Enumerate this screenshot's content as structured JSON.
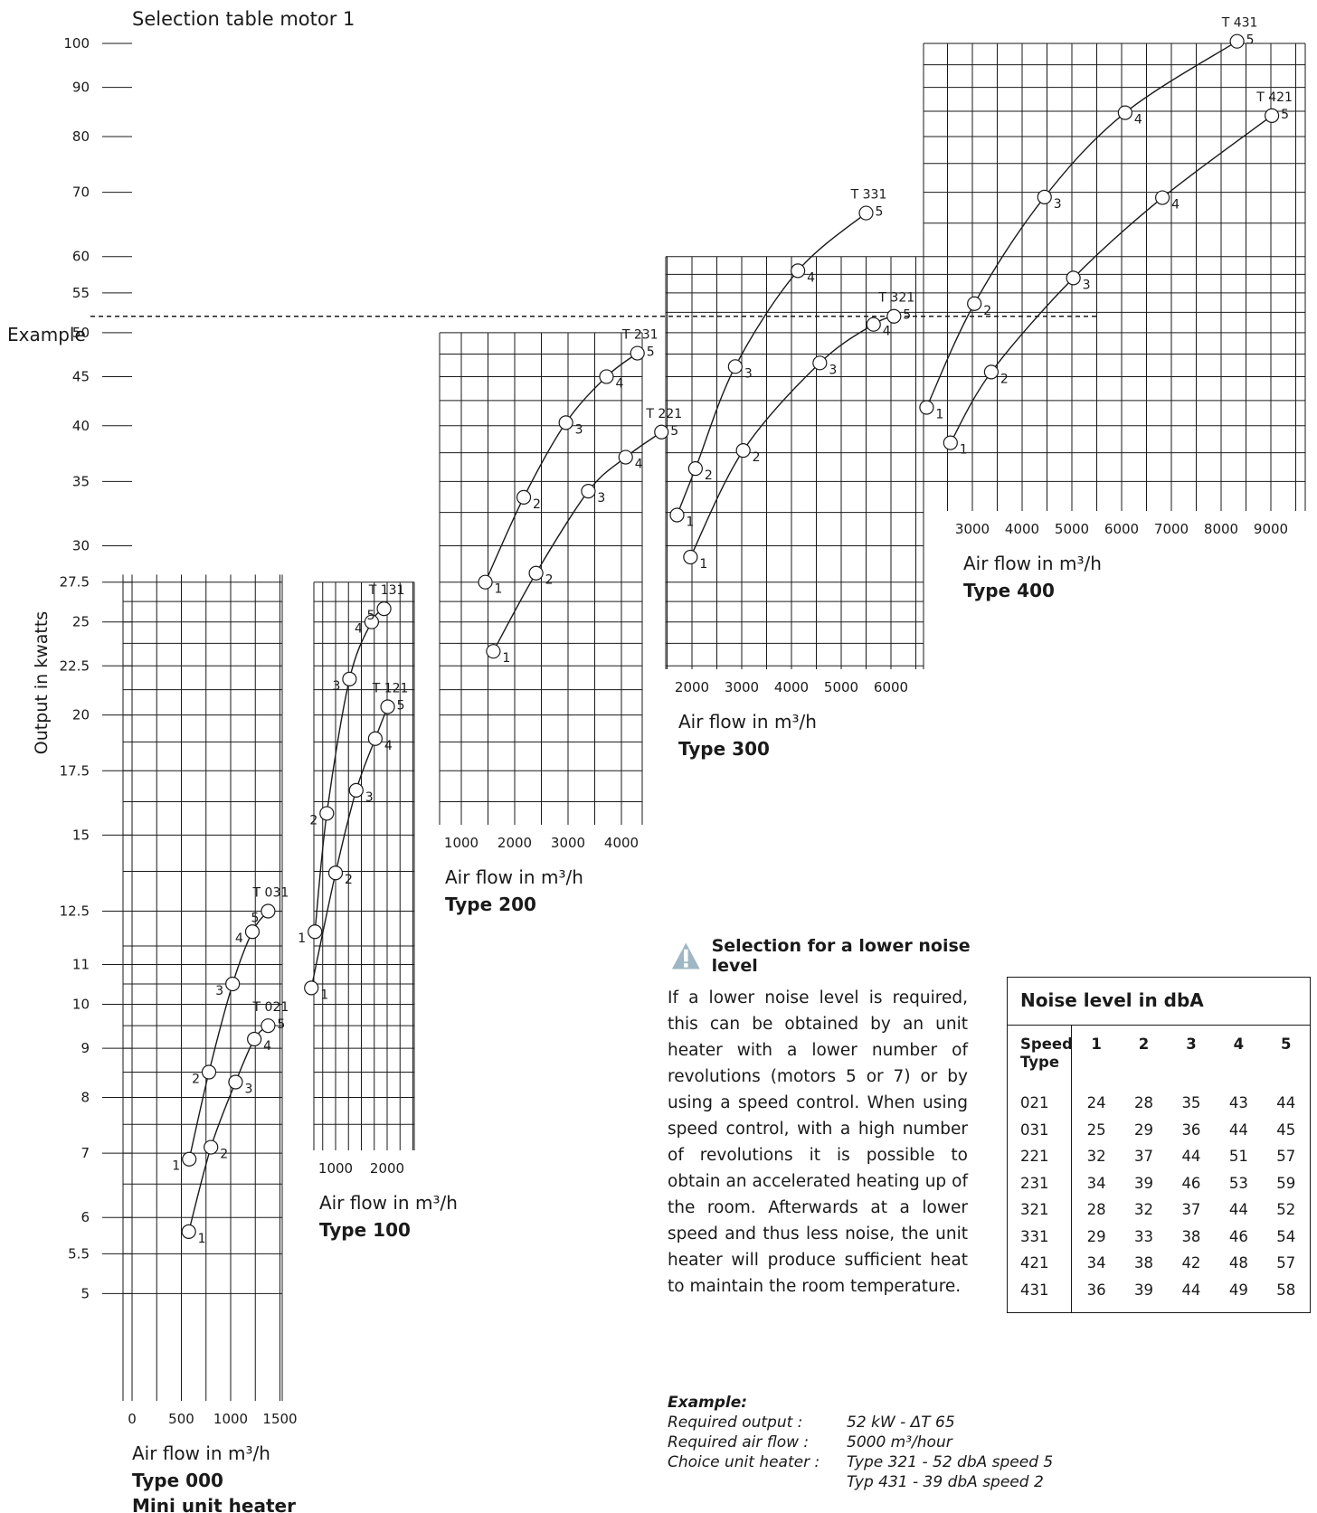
{
  "page": {
    "title": "Selection table motor 1",
    "example_label": "Example"
  },
  "chart_data": {
    "type": "line",
    "title": "Selection table motor 1",
    "ylabel": "Output in kwatts",
    "y_scale": "log",
    "ylim": [
      5,
      100
    ],
    "y_ticks": [
      5,
      5.5,
      6,
      7,
      8,
      9,
      10,
      11,
      12.5,
      15,
      17.5,
      20,
      22.5,
      25,
      27.5,
      30,
      35,
      40,
      45,
      50,
      55,
      60,
      70,
      80,
      90,
      100
    ],
    "y_tick_labels": [
      "5",
      "5.5",
      "6",
      "7",
      "8",
      "9",
      "10",
      "11",
      "12.5",
      "15",
      "17.5",
      "20",
      "22.5",
      "25",
      "27.5",
      "30",
      "35",
      "40",
      "45",
      "50",
      "55",
      "60",
      "70",
      "80",
      "90",
      "100"
    ],
    "example_line": {
      "label": "Example",
      "y": 52
    },
    "panels": [
      {
        "name": "Type 000",
        "subtitle": "Mini unit heater",
        "xlabel": "Air flow in m³/h",
        "x_ticks": [
          0,
          500,
          1000,
          1500
        ],
        "x_tick_labels": [
          "0",
          "500",
          "1000",
          "1500"
        ],
        "series": [
          {
            "name": "T 021",
            "x": [
              575,
              800,
              1050,
              1240,
              1380
            ],
            "y": [
              5.8,
              7.1,
              8.3,
              9.2,
              9.5
            ],
            "speeds": [
              "1",
              "2",
              "3",
              "4",
              "5"
            ]
          },
          {
            "name": "T 031",
            "x": [
              580,
              780,
              1020,
              1220,
              1380
            ],
            "y": [
              6.9,
              8.5,
              10.5,
              11.9,
              12.5
            ],
            "speeds": [
              "1",
              "2",
              "3",
              "4",
              "5"
            ]
          }
        ]
      },
      {
        "name": "Type 100",
        "xlabel": "Air flow in m³/h",
        "x_ticks": [
          1000,
          2000
        ],
        "x_tick_labels": [
          "1000",
          "2000"
        ],
        "series": [
          {
            "name": "T 121",
            "x": [
              530,
              1000,
              1400,
              1770,
              2010
            ],
            "y": [
              10.4,
              13.7,
              16.7,
              18.9,
              20.4
            ],
            "speeds": [
              "1",
              "2",
              "3",
              "4",
              "5"
            ]
          },
          {
            "name": "T 131",
            "x": [
              600,
              830,
              1270,
              1700,
              1940
            ],
            "y": [
              11.9,
              15.8,
              21.8,
              25,
              25.8
            ],
            "speeds": [
              "1",
              "2",
              "3",
              "4",
              "5"
            ]
          }
        ]
      },
      {
        "name": "Type 200",
        "xlabel": "Air flow in m³/h",
        "x_ticks": [
          1000,
          2000,
          3000,
          4000
        ],
        "x_tick_labels": [
          "1000",
          "2000",
          "3000",
          "4000"
        ],
        "series": [
          {
            "name": "T 221",
            "x": [
              1600,
              2400,
              3380,
              4080,
              4750
            ],
            "y": [
              23.3,
              28.1,
              34.2,
              37.1,
              39.4
            ],
            "speeds": [
              "1",
              "2",
              "3",
              "4",
              "5"
            ]
          },
          {
            "name": "T 231",
            "x": [
              1450,
              2170,
              2960,
              3720,
              4300
            ],
            "y": [
              27.5,
              33.7,
              40.3,
              45,
              47.6
            ],
            "speeds": [
              "1",
              "2",
              "3",
              "4",
              "5"
            ]
          }
        ]
      },
      {
        "name": "Type 300",
        "xlabel": "Air flow in m³/h",
        "x_ticks": [
          2000,
          3000,
          4000,
          5000,
          6000
        ],
        "x_tick_labels": [
          "2000",
          "3000",
          "4000",
          "5000",
          "6000"
        ],
        "series": [
          {
            "name": "T 321",
            "x": [
              1970,
              3030,
              4570,
              5650,
              6060
            ],
            "y": [
              29.2,
              37.7,
              46.5,
              51,
              52
            ],
            "speeds": [
              "1",
              "2",
              "3",
              "4",
              "5"
            ]
          },
          {
            "name": "T 331",
            "x": [
              1700,
              2070,
              2870,
              4130,
              5500
            ],
            "y": [
              32.3,
              36.1,
              46.1,
              58,
              66.6
            ],
            "speeds": [
              "1",
              "2",
              "3",
              "4",
              "5"
            ]
          }
        ]
      },
      {
        "name": "Type 400",
        "xlabel": "Air flow in m³/h",
        "x_ticks": [
          3000,
          4000,
          5000,
          6000,
          7000,
          8000,
          9000
        ],
        "x_tick_labels": [
          "3000",
          "4000",
          "5000",
          "6000",
          "7000",
          "8000",
          "9000"
        ],
        "series": [
          {
            "name": "T 421",
            "x": [
              2560,
              3380,
              5030,
              6820,
              9020
            ],
            "y": [
              38.4,
              45.5,
              57,
              69.1,
              84.1
            ],
            "speeds": [
              "1",
              "2",
              "3",
              "4",
              "5"
            ]
          },
          {
            "name": "T 431",
            "x": [
              2080,
              3040,
              4450,
              6070,
              8320
            ],
            "y": [
              41.8,
              53.6,
              69.2,
              84.7,
              100.5
            ],
            "speeds": [
              "1",
              "2",
              "3",
              "4",
              "5"
            ]
          }
        ]
      }
    ]
  },
  "notice": {
    "icon": "warning-icon",
    "title": "Selection for a lower noise level",
    "body": "If a lower noise level is required, this can be obtained by an unit heater with a lower number of revolutions (motors 5 or 7) or by using a speed control. When using speed control, with a high number of revolutions it is possible to obtain an accelerated heating up of the room. Afterwards at a lower speed and thus less noise, the unit heater will produce sufficient heat to maintain the room temperature."
  },
  "noise_table": {
    "title": "Noise level in dbA",
    "header_speed": "Speed",
    "header_type": "Type",
    "speeds": [
      "1",
      "2",
      "3",
      "4",
      "5"
    ],
    "rows": [
      {
        "type": "021",
        "values": [
          "24",
          "28",
          "35",
          "43",
          "44"
        ]
      },
      {
        "type": "031",
        "values": [
          "25",
          "29",
          "36",
          "44",
          "45"
        ]
      },
      {
        "type": "221",
        "values": [
          "32",
          "37",
          "44",
          "51",
          "57"
        ]
      },
      {
        "type": "231",
        "values": [
          "34",
          "39",
          "46",
          "53",
          "59"
        ]
      },
      {
        "type": "321",
        "values": [
          "28",
          "32",
          "37",
          "44",
          "52"
        ]
      },
      {
        "type": "331",
        "values": [
          "29",
          "33",
          "38",
          "46",
          "54"
        ]
      },
      {
        "type": "421",
        "values": [
          "34",
          "38",
          "42",
          "48",
          "57"
        ]
      },
      {
        "type": "431",
        "values": [
          "36",
          "39",
          "44",
          "49",
          "58"
        ]
      }
    ]
  },
  "example": {
    "title": "Example:",
    "rows": [
      {
        "key": "Required output :",
        "value": "52 kW - ΔT 65"
      },
      {
        "key": "Required air flow :",
        "value": "5000 m³/hour"
      },
      {
        "key": "Choice unit heater :",
        "value": "Type 321 - 52 dbA speed 5"
      },
      {
        "key": "",
        "value": "Typ 431 - 39 dbA speed 2"
      }
    ]
  }
}
